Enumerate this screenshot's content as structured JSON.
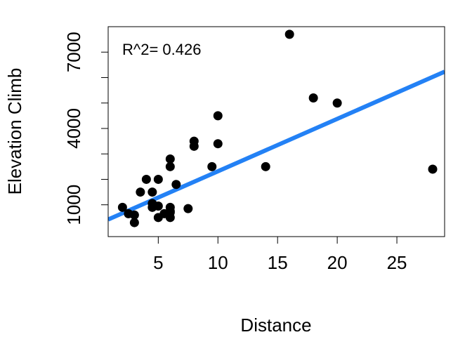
{
  "chart_data": {
    "type": "scatter",
    "xlabel": "Distance",
    "ylabel": "Elevation Climb",
    "annotation": "R^2= 0.426",
    "xlim": [
      0.8,
      29
    ],
    "ylim": [
      -250,
      8000
    ],
    "x_ticks": [
      5,
      10,
      15,
      20,
      25
    ],
    "y_ticks": [
      1000,
      4000,
      7000
    ],
    "y_minor_ticks": [
      2000,
      3000,
      5000,
      6000
    ],
    "grid": false,
    "legend": "none",
    "series": [
      {
        "points": [
          [
            2,
            900
          ],
          [
            2.5,
            650
          ],
          [
            3,
            600
          ],
          [
            3,
            300
          ],
          [
            3.5,
            1500
          ],
          [
            4,
            2000
          ],
          [
            4.5,
            900
          ],
          [
            4.5,
            1050
          ],
          [
            4.5,
            1500
          ],
          [
            5,
            2000
          ],
          [
            5,
            500
          ],
          [
            5,
            950
          ],
          [
            5.5,
            650
          ],
          [
            6,
            2500
          ],
          [
            6,
            2800
          ],
          [
            6,
            900
          ],
          [
            6,
            750
          ],
          [
            6,
            700
          ],
          [
            6,
            500
          ],
          [
            6.5,
            1800
          ],
          [
            7.5,
            850
          ],
          [
            8,
            3300
          ],
          [
            8,
            3500
          ],
          [
            9.5,
            2500
          ],
          [
            10,
            4500
          ],
          [
            10,
            3400
          ],
          [
            14,
            2500
          ],
          [
            16,
            7700
          ],
          [
            18,
            5200
          ],
          [
            20,
            5000
          ],
          [
            28,
            2400
          ]
        ]
      }
    ],
    "regression_line": {
      "intercept": 257,
      "slope": 206
    },
    "colors": {
      "points": "#000000",
      "regression_line": "#2381f5",
      "axes": "#000000"
    }
  }
}
